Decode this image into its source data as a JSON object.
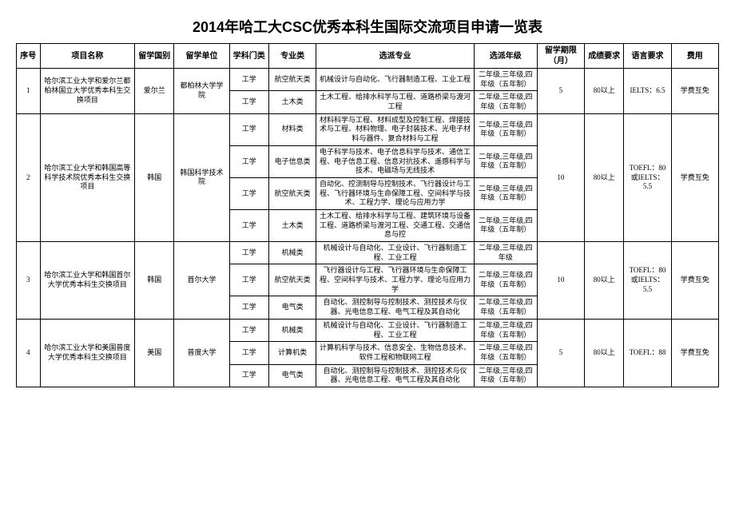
{
  "title": "2014年哈工大CSC优秀本科生国际交流项目申请一览表",
  "headers": {
    "seq": "序号",
    "name": "项目名称",
    "country": "留学国别",
    "unit": "留学单位",
    "category": "学科门类",
    "major": "专业类",
    "spec": "选派专业",
    "grade": "选派年级",
    "duration": "留学期限（月）",
    "score": "成绩要求",
    "lang": "语言要求",
    "fee": "费用"
  },
  "rows": [
    {
      "seq": "1",
      "name": "哈尔滨工业大学和爱尔兰都柏林国立大学优秀本科生交换项目",
      "country": "爱尔兰",
      "unit": "都柏林大学学院",
      "duration": "5",
      "score": "80以上",
      "lang": "IELTS：6.5",
      "fee": "学费互免",
      "sub": [
        {
          "category": "工学",
          "major": "航空航天类",
          "spec": "机械设计与自动化、飞行器制造工程、工业工程",
          "grade": "二年级,三年级,四年级（五年制）"
        },
        {
          "category": "工学",
          "major": "土木类",
          "spec": "土木工程、给排水科学与工程、道路桥梁与渡河工程",
          "grade": "二年级,三年级,四年级（五年制）"
        }
      ]
    },
    {
      "seq": "2",
      "name": "哈尔滨工业大学和韩国高等科学技术院优秀本科生交换项目",
      "country": "韩国",
      "unit": "韩国科学技术院",
      "duration": "10",
      "score": "80以上",
      "lang": "TOEFL：80或IELTS：5.5",
      "fee": "学费互免",
      "sub": [
        {
          "category": "工学",
          "major": "材料类",
          "spec": "材料科学与工程、材料成型及控制工程、焊接技术与工程、材料物理、电子封装技术、光电子材料与器件、复合材料与工程",
          "grade": "二年级,三年级,四年级（五年制）"
        },
        {
          "category": "工学",
          "major": "电子信息类",
          "spec": "电子科学与技术、电子信息科学与技术、通信工程、电子信息工程、信息对抗技术、遥感科学与技术、电磁场与无线技术",
          "grade": "二年级,三年级,四年级（五年制）"
        },
        {
          "category": "工学",
          "major": "航空航天类",
          "spec": "自动化、控测制导与控制技术、飞行器设计与工程、飞行器环境与生命保障工程、空间科学与技术、工程力学、理论与应用力学",
          "grade": "二年级,三年级,四年级（五年制）"
        },
        {
          "category": "工学",
          "major": "土木类",
          "spec": "土木工程、给排水科学与工程、建筑环境与设备工程、道路桥梁与渡河工程、交通工程、交通信息与控",
          "grade": "二年级,三年级,四年级（五年制）"
        }
      ]
    },
    {
      "seq": "3",
      "name": "哈尔滨工业大学和韩国首尔大学优秀本科生交换项目",
      "country": "韩国",
      "unit": "首尔大学",
      "duration": "10",
      "score": "80以上",
      "lang": "TOEFL：80或IELTS：5.5",
      "fee": "学费互免",
      "sub": [
        {
          "category": "工学",
          "major": "机械类",
          "spec": "机械设计与自动化、工业设计、飞行器制造工程、工业工程",
          "grade": "二年级,三年级,四年级"
        },
        {
          "category": "工学",
          "major": "航空航天类",
          "spec": "飞行器设计与工程、飞行器环境与生命保障工程、空间科学与技术、工程力学、理论与应用力学",
          "grade": "二年级,三年级,四年级（五年制）"
        },
        {
          "category": "工学",
          "major": "电气类",
          "spec": "自动化、测控制导与控制技术、测控技术与仪器、光电信息工程、电气工程及其自动化",
          "grade": "二年级,三年级,四年级（五年制）"
        }
      ]
    },
    {
      "seq": "4",
      "name": "哈尔滨工业大学和美国普度大学优秀本科生交换项目",
      "country": "美国",
      "unit": "普度大学",
      "duration": "5",
      "score": "80以上",
      "lang": "TOEFL：88",
      "fee": "学费互免",
      "sub": [
        {
          "category": "工学",
          "major": "机械类",
          "spec": "机械设计与自动化、工业设计、飞行器制造工程、工业工程",
          "grade": "二年级,三年级,四年级（五年制）"
        },
        {
          "category": "工学",
          "major": "计算机类",
          "spec": "计算机科学与技术、信息安全、生物信息技术、软件工程和物联网工程",
          "grade": "二年级,三年级,四年级（五年制）"
        },
        {
          "category": "工学",
          "major": "电气类",
          "spec": "自动化、测控制导与控制技术、测控技术与仪器、光电信息工程、电气工程及其自动化",
          "grade": "二年级,三年级,四年级（五年制）"
        }
      ]
    }
  ]
}
